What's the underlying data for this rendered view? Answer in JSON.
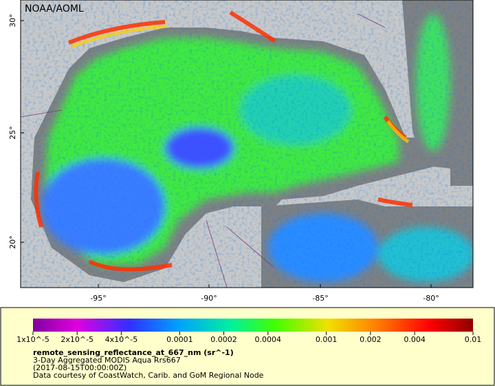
{
  "header": {
    "credit": "NOAA/AOML"
  },
  "axes": {
    "lat_labels": [
      "30°",
      "25°",
      "20°"
    ],
    "lon_labels": [
      "-95°",
      "-90°",
      "-85°",
      "-80°"
    ]
  },
  "colorbar": {
    "scale": "log",
    "lim": [
      1e-05,
      0.01
    ],
    "ticks": [
      {
        "value": 1e-05,
        "label": "1x10^-5"
      },
      {
        "value": 2e-05,
        "label": "2x10^-5"
      },
      {
        "value": 4e-05,
        "label": "4x10^-5"
      },
      0.0001,
      0.0002,
      0.0004,
      0.001,
      0.002,
      0.004,
      0.01
    ]
  },
  "legend": {
    "variable": "remote_sensing_reflectance_at_667_nm (sr^-1)",
    "description": "3-Day Aggregated MODIS Aqua Rrs667",
    "time": "(2017-08-15T00:00:00Z)",
    "source": "Data courtesy of CoastWatch, Carib. and GoM Regional Node"
  }
}
